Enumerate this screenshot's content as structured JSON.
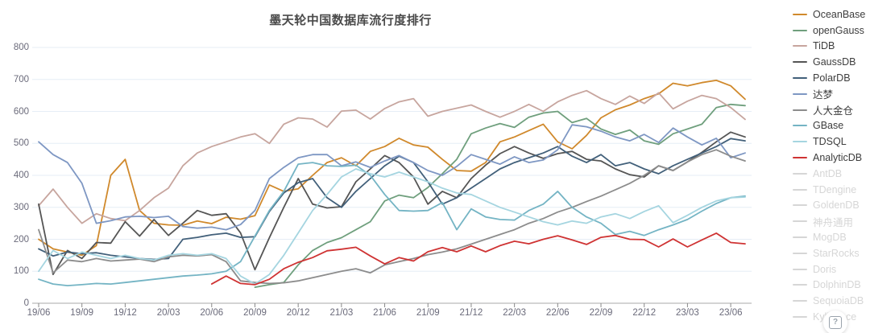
{
  "page": {
    "title": "墨天轮中国数据库流行度排行"
  },
  "help_button": {
    "icon_glyph": "?"
  },
  "chart_data": {
    "type": "line",
    "title": "墨天轮中国数据库流行度排行",
    "grid": true,
    "legend_position": "right",
    "x_axis": {
      "n_points": 50,
      "start_month": "19/06",
      "end_month": "23/07",
      "months_per_tick": 3,
      "tick_labels": [
        "19/06",
        "19/09",
        "19/12",
        "20/03",
        "20/06",
        "20/09",
        "20/12",
        "21/03",
        "21/06",
        "21/09",
        "21/12",
        "22/03",
        "22/06",
        "22/09",
        "22/12",
        "23/03",
        "23/06"
      ]
    },
    "y_axis": {
      "min": 0,
      "max": 800,
      "tick_step": 100,
      "tick_labels": [
        "0",
        "100",
        "200",
        "300",
        "400",
        "500",
        "600",
        "700",
        "800"
      ]
    },
    "series": [
      {
        "name": "OceanBase",
        "color": "#d0892c",
        "enabled": true,
        "values": [
          200,
          170,
          160,
          150,
          180,
          400,
          450,
          290,
          250,
          245,
          244,
          257,
          249,
          269,
          263,
          274,
          370,
          350,
          358,
          400,
          440,
          455,
          430,
          475,
          490,
          516,
          495,
          488,
          450,
          415,
          413,
          440,
          505,
          520,
          540,
          560,
          505,
          483,
          525,
          580,
          605,
          620,
          640,
          655,
          688,
          680,
          690,
          697,
          680,
          638
        ]
      },
      {
        "name": "openGauss",
        "color": "#6f9f7d",
        "enabled": true,
        "values": [
          null,
          null,
          null,
          null,
          null,
          null,
          null,
          null,
          null,
          null,
          null,
          null,
          null,
          null,
          null,
          50,
          58,
          65,
          120,
          165,
          190,
          205,
          230,
          255,
          320,
          338,
          330,
          362,
          405,
          450,
          530,
          548,
          562,
          550,
          582,
          595,
          600,
          565,
          578,
          545,
          528,
          542,
          508,
          497,
          530,
          545,
          560,
          612,
          622,
          618
        ]
      },
      {
        "name": "TiDB",
        "color": "#c7a59e",
        "enabled": true,
        "values": [
          305,
          357,
          300,
          250,
          280,
          265,
          258,
          290,
          330,
          360,
          430,
          470,
          490,
          505,
          520,
          530,
          500,
          560,
          580,
          576,
          551,
          601,
          604,
          576,
          609,
          630,
          640,
          585,
          600,
          610,
          620,
          600,
          582,
          600,
          622,
          600,
          630,
          650,
          665,
          640,
          622,
          648,
          625,
          658,
          608,
          632,
          650,
          640,
          612,
          575
        ]
      },
      {
        "name": "GaussDB",
        "color": "#555555",
        "enabled": true,
        "values": [
          310,
          90,
          165,
          140,
          190,
          188,
          255,
          210,
          262,
          212,
          250,
          290,
          275,
          280,
          220,
          105,
          205,
          300,
          390,
          310,
          298,
          302,
          380,
          420,
          462,
          440,
          395,
          310,
          350,
          330,
          390,
          432,
          468,
          490,
          470,
          453,
          468,
          475,
          450,
          445,
          420,
          402,
          395,
          430,
          415,
          442,
          472,
          505,
          535,
          520
        ]
      },
      {
        "name": "PolarDB",
        "color": "#42607a",
        "enabled": true,
        "values": [
          170,
          148,
          160,
          155,
          158,
          150,
          145,
          140,
          137,
          140,
          200,
          206,
          214,
          219,
          206,
          208,
          287,
          345,
          377,
          390,
          330,
          300,
          350,
          390,
          430,
          460,
          440,
          380,
          310,
          330,
          360,
          390,
          420,
          440,
          455,
          470,
          490,
          460,
          440,
          465,
          430,
          440,
          420,
          405,
          430,
          450,
          470,
          490,
          515,
          508
        ]
      },
      {
        "name": "达梦",
        "color": "#7e97c3",
        "enabled": true,
        "values": [
          505,
          465,
          440,
          375,
          250,
          258,
          270,
          272,
          268,
          272,
          240,
          235,
          238,
          230,
          246,
          290,
          390,
          425,
          455,
          465,
          465,
          430,
          442,
          425,
          445,
          462,
          440,
          415,
          400,
          428,
          465,
          450,
          435,
          458,
          440,
          448,
          480,
          558,
          552,
          538,
          520,
          508,
          528,
          503,
          548,
          520,
          495,
          516,
          455,
          470
        ]
      },
      {
        "name": "人大金仓",
        "color": "#8c8c8c",
        "enabled": true,
        "values": [
          230,
          95,
          135,
          130,
          140,
          132,
          135,
          138,
          130,
          145,
          150,
          148,
          152,
          130,
          70,
          65,
          62,
          64,
          70,
          80,
          90,
          100,
          108,
          95,
          120,
          130,
          140,
          152,
          160,
          170,
          185,
          200,
          215,
          230,
          250,
          265,
          285,
          300,
          318,
          335,
          355,
          375,
          400,
          430,
          415,
          442,
          465,
          480,
          460,
          445
        ]
      },
      {
        "name": "GBase",
        "color": "#74b4c4",
        "enabled": true,
        "values": [
          75,
          60,
          55,
          58,
          62,
          60,
          65,
          70,
          75,
          80,
          85,
          88,
          92,
          100,
          130,
          210,
          290,
          350,
          435,
          440,
          430,
          428,
          432,
          400,
          340,
          290,
          288,
          290,
          315,
          230,
          295,
          270,
          262,
          260,
          290,
          310,
          350,
          300,
          270,
          250,
          215,
          225,
          212,
          230,
          245,
          262,
          288,
          312,
          330,
          335
        ]
      },
      {
        "name": "TDSQL",
        "color": "#a5d5e0",
        "enabled": true,
        "values": [
          100,
          165,
          140,
          160,
          150,
          140,
          150,
          140,
          135,
          150,
          155,
          150,
          155,
          140,
          85,
          60,
          90,
          150,
          220,
          290,
          340,
          395,
          420,
          405,
          395,
          410,
          395,
          380,
          360,
          345,
          340,
          320,
          300,
          285,
          270,
          255,
          245,
          257,
          250,
          270,
          280,
          265,
          287,
          305,
          252,
          275,
          300,
          320,
          330,
          332
        ]
      },
      {
        "name": "AnalyticDB",
        "color": "#cf3333",
        "enabled": true,
        "values": [
          null,
          null,
          null,
          null,
          null,
          null,
          null,
          null,
          null,
          null,
          null,
          null,
          60,
          85,
          62,
          58,
          75,
          108,
          128,
          143,
          164,
          169,
          175,
          148,
          123,
          143,
          132,
          161,
          174,
          161,
          179,
          161,
          180,
          194,
          186,
          200,
          211,
          198,
          184,
          206,
          212,
          200,
          199,
          176,
          201,
          176,
          198,
          219,
          190,
          186
        ]
      },
      {
        "name": "AntDB",
        "color": "#d6d6d6",
        "enabled": false,
        "values": []
      },
      {
        "name": "TDengine",
        "color": "#d6d6d6",
        "enabled": false,
        "values": []
      },
      {
        "name": "GoldenDB",
        "color": "#d6d6d6",
        "enabled": false,
        "values": []
      },
      {
        "name": "神舟通用",
        "color": "#d6d6d6",
        "enabled": false,
        "values": []
      },
      {
        "name": "MogDB",
        "color": "#d6d6d6",
        "enabled": false,
        "values": []
      },
      {
        "name": "StarRocks",
        "color": "#d6d6d6",
        "enabled": false,
        "values": []
      },
      {
        "name": "Doris",
        "color": "#d6d6d6",
        "enabled": false,
        "values": []
      },
      {
        "name": "DolphinDB",
        "color": "#d6d6d6",
        "enabled": false,
        "values": []
      },
      {
        "name": "SequoiaDB",
        "color": "#d6d6d6",
        "enabled": false,
        "values": []
      },
      {
        "name": "Kyligence",
        "color": "#d6d6d6",
        "enabled": false,
        "values": []
      }
    ],
    "style": {
      "gridline_color": "#e6edf6",
      "axis_line_color": "#a8a8a8",
      "tick_color": "#888888",
      "line_width": 1.8
    }
  }
}
